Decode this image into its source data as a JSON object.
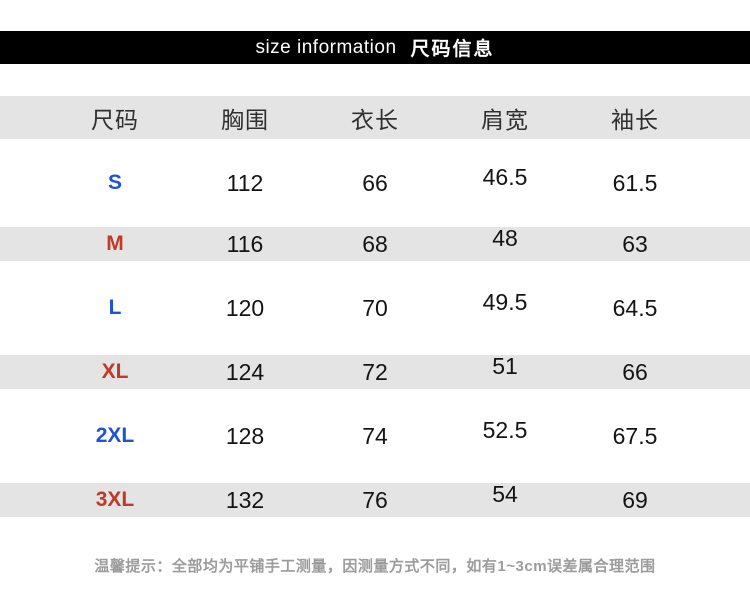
{
  "banner": {
    "title_en": "size information",
    "title_zh": "尺码信息"
  },
  "table": {
    "headers": [
      "尺码",
      "胸围",
      "衣长",
      "肩宽",
      "袖长"
    ],
    "rows": [
      {
        "size": "S",
        "chest": "112",
        "length": "66",
        "shoulder": "46.5",
        "sleeve": "61.5"
      },
      {
        "size": "M",
        "chest": "116",
        "length": "68",
        "shoulder": "48",
        "sleeve": "63"
      },
      {
        "size": "L",
        "chest": "120",
        "length": "70",
        "shoulder": "49.5",
        "sleeve": "64.5"
      },
      {
        "size": "XL",
        "chest": "124",
        "length": "72",
        "shoulder": "51",
        "sleeve": "66"
      },
      {
        "size": "2XL",
        "chest": "128",
        "length": "74",
        "shoulder": "52.5",
        "sleeve": "67.5"
      },
      {
        "size": "3XL",
        "chest": "132",
        "length": "76",
        "shoulder": "54",
        "sleeve": "69"
      }
    ]
  },
  "note": "温馨提示：全部均为平铺手工测量，因测量方式不同，如有1~3cm误差属合理范围",
  "colors": {
    "banner_bg": "#000000",
    "banner_text": "#ffffff",
    "stripe_gray": "#e4e4e4",
    "header_text": "#2f2f2f",
    "value_text": "#141414",
    "size_blue": "#2052d8",
    "size_red": "#c13a28",
    "note_gray": "#9c9c9c"
  }
}
